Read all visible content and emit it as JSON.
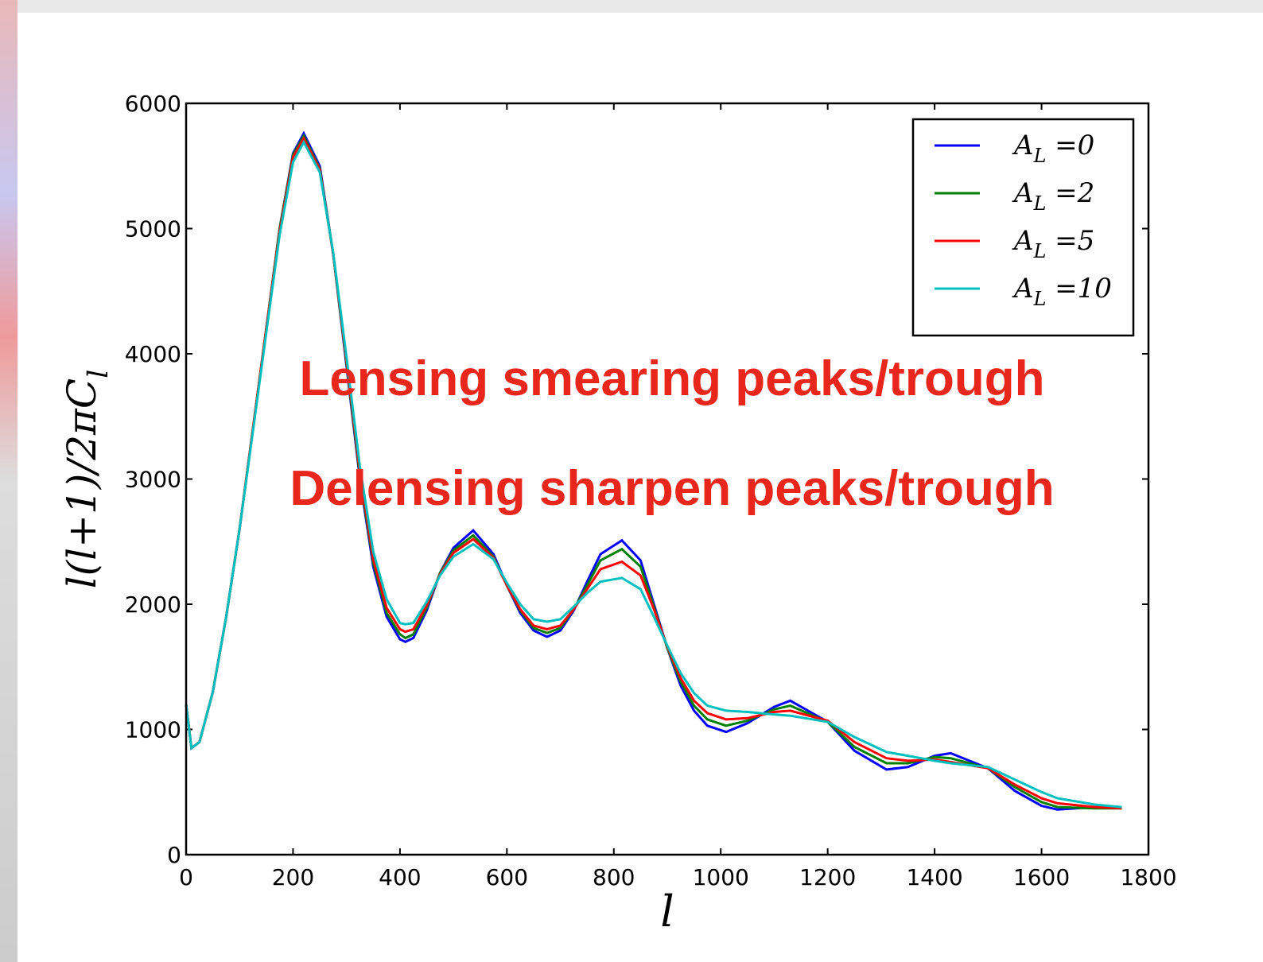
{
  "chart_data": {
    "type": "line",
    "xlabel": "l",
    "ylabel": "l(l+1)/2πC_l",
    "annotations": [
      "Lensing smearing peaks/trough",
      "Delensing sharpen peaks/trough"
    ],
    "xlim": [
      0,
      1800
    ],
    "xticks": [
      0,
      200,
      400,
      600,
      800,
      1000,
      1200,
      1400,
      1600,
      1800
    ],
    "ylim": [
      0,
      6000
    ],
    "yticks": [
      0,
      1000,
      2000,
      3000,
      4000,
      5000,
      6000
    ],
    "legend": "upper right",
    "x": [
      0,
      10,
      25,
      50,
      75,
      100,
      125,
      150,
      175,
      200,
      220,
      250,
      275,
      300,
      325,
      350,
      375,
      400,
      410,
      425,
      450,
      475,
      500,
      537,
      575,
      600,
      625,
      650,
      675,
      700,
      725,
      750,
      775,
      815,
      850,
      875,
      900,
      925,
      950,
      975,
      1010,
      1050,
      1100,
      1130,
      1200,
      1250,
      1310,
      1350,
      1400,
      1430,
      1500,
      1550,
      1600,
      1630,
      1700,
      1750
    ],
    "series": [
      {
        "name": "A_L =0",
        "color": "#0000ff",
        "values": [
          1200,
          850,
          900,
          1300,
          1900,
          2600,
          3400,
          4200,
          5000,
          5600,
          5760,
          5500,
          4800,
          3900,
          3000,
          2300,
          1900,
          1720,
          1700,
          1730,
          1950,
          2250,
          2450,
          2590,
          2400,
          2150,
          1930,
          1790,
          1740,
          1790,
          1950,
          2180,
          2400,
          2510,
          2350,
          2000,
          1650,
          1350,
          1150,
          1030,
          980,
          1050,
          1180,
          1230,
          1060,
          830,
          680,
          700,
          790,
          810,
          690,
          510,
          390,
          360,
          380,
          380
        ]
      },
      {
        "name": "A_L =2",
        "color": "#008000",
        "values": [
          1200,
          850,
          900,
          1300,
          1900,
          2600,
          3400,
          4200,
          5000,
          5590,
          5740,
          5480,
          4800,
          3920,
          3020,
          2330,
          1930,
          1760,
          1730,
          1760,
          1970,
          2250,
          2430,
          2550,
          2380,
          2150,
          1950,
          1810,
          1770,
          1810,
          1960,
          2150,
          2350,
          2440,
          2300,
          1980,
          1650,
          1380,
          1190,
          1080,
          1030,
          1070,
          1160,
          1190,
          1060,
          860,
          730,
          730,
          780,
          770,
          690,
          540,
          420,
          380,
          370,
          370
        ]
      },
      {
        "name": "A_L =5",
        "color": "#ff0000",
        "values": [
          1200,
          850,
          900,
          1300,
          1900,
          2600,
          3400,
          4200,
          4980,
          5570,
          5720,
          5470,
          4800,
          3940,
          3050,
          2360,
          1970,
          1800,
          1780,
          1800,
          1990,
          2240,
          2410,
          2520,
          2370,
          2150,
          1960,
          1830,
          1800,
          1830,
          1960,
          2120,
          2280,
          2340,
          2230,
          1960,
          1660,
          1410,
          1230,
          1130,
          1080,
          1090,
          1140,
          1150,
          1070,
          900,
          770,
          750,
          760,
          740,
          690,
          560,
          450,
          410,
          380,
          370
        ]
      },
      {
        "name": "A_L =10",
        "color": "#00bfbf",
        "values": [
          1200,
          850,
          900,
          1300,
          1900,
          2600,
          3380,
          4170,
          4950,
          5530,
          5690,
          5450,
          4810,
          3970,
          3100,
          2420,
          2040,
          1850,
          1840,
          1850,
          2020,
          2230,
          2380,
          2480,
          2360,
          2170,
          2000,
          1880,
          1860,
          1880,
          1980,
          2090,
          2180,
          2210,
          2120,
          1900,
          1670,
          1450,
          1290,
          1190,
          1150,
          1140,
          1120,
          1110,
          1060,
          940,
          820,
          790,
          750,
          730,
          700,
          600,
          500,
          450,
          400,
          380
        ]
      }
    ]
  }
}
